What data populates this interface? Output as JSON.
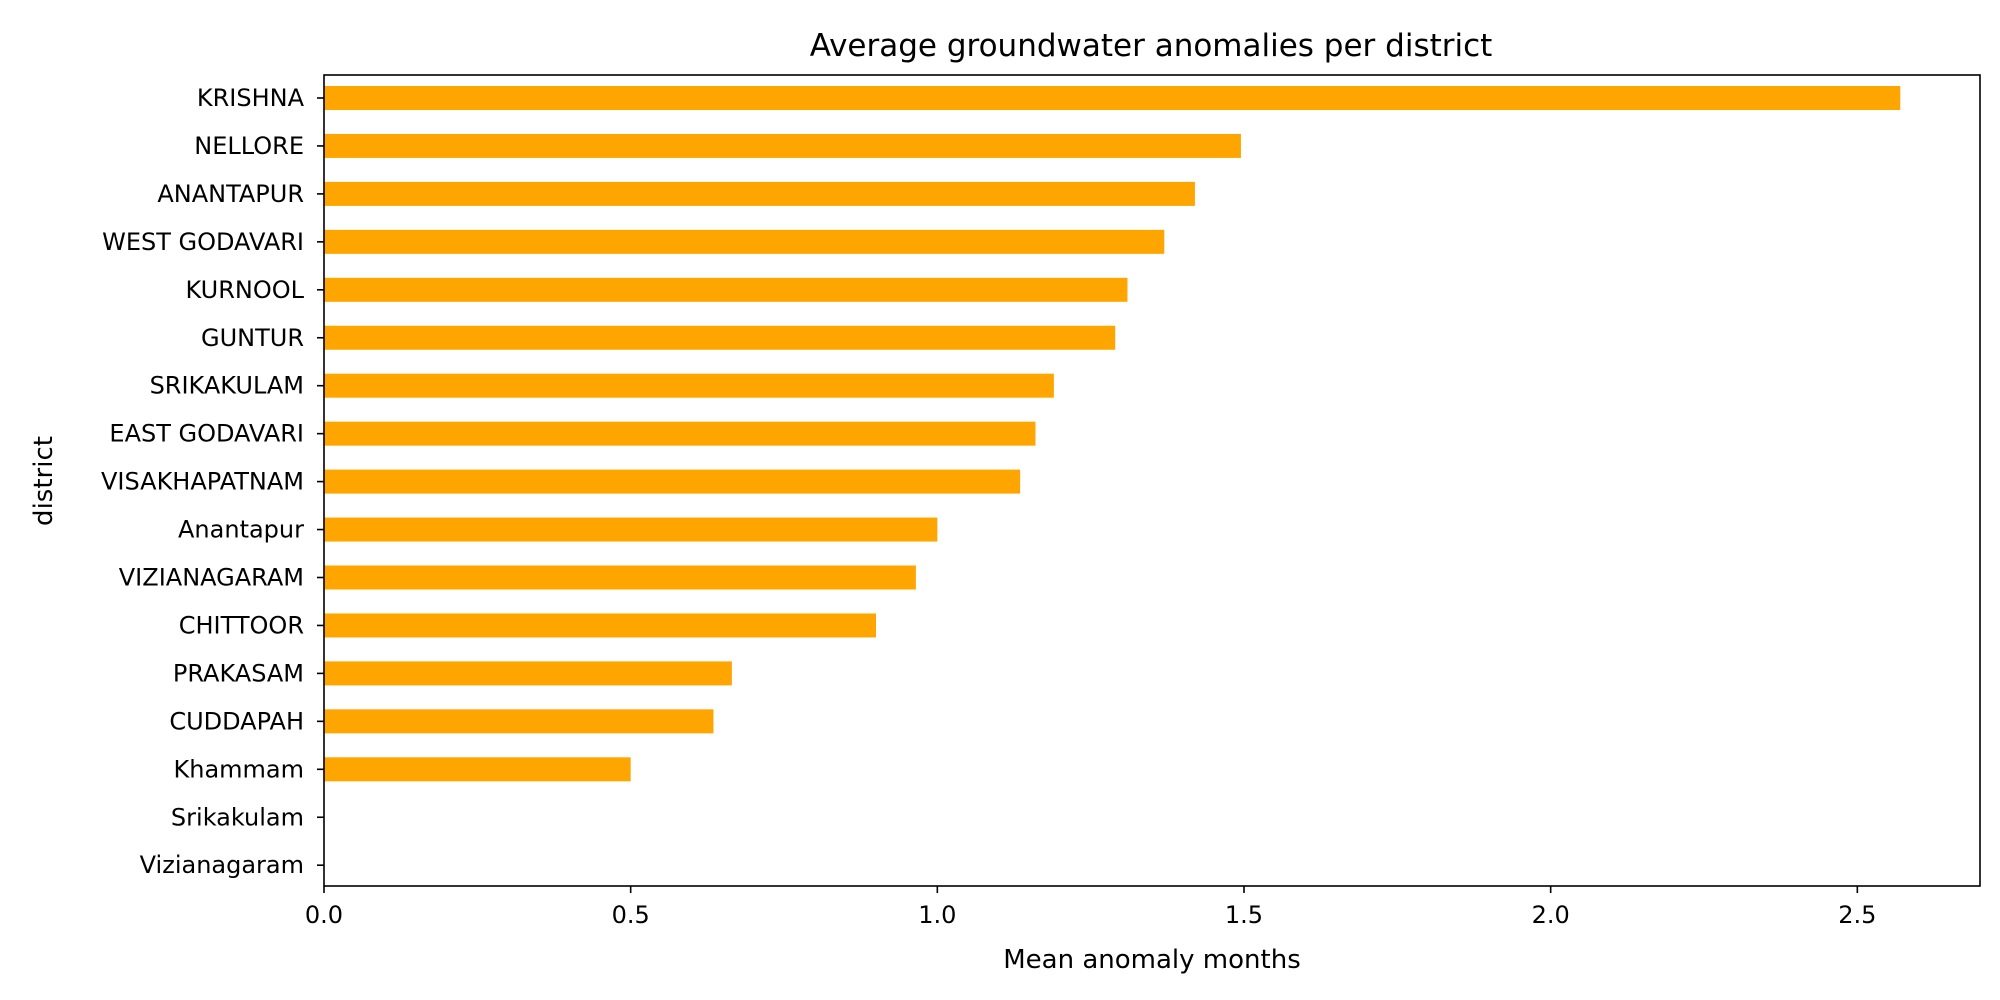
{
  "chart_data": {
    "type": "bar",
    "orientation": "horizontal",
    "title": "Average groundwater anomalies per district",
    "xlabel": "Mean anomaly months",
    "ylabel": "district",
    "xlim": [
      0,
      2.7
    ],
    "xticks": [
      0.0,
      0.5,
      1.0,
      1.5,
      2.0,
      2.5
    ],
    "xtick_labels": [
      "0.0",
      "0.5",
      "1.0",
      "1.5",
      "2.0",
      "2.5"
    ],
    "grid": false,
    "legend": "none",
    "bar_color": "#FFA500",
    "categories": [
      "KRISHNA",
      "NELLORE",
      "ANANTAPUR",
      "WEST GODAVARI",
      "KURNOOL",
      "GUNTUR",
      "SRIKAKULAM",
      "EAST GODAVARI",
      "VISAKHAPATNAM",
      "Anantapur",
      "VIZIANAGARAM",
      "CHITTOOR",
      "PRAKASAM",
      "CUDDAPAH",
      "Khammam",
      "Srikakulam",
      "Vizianagaram"
    ],
    "values": [
      2.57,
      1.495,
      1.42,
      1.37,
      1.31,
      1.29,
      1.19,
      1.16,
      1.135,
      1.0,
      0.965,
      0.9,
      0.665,
      0.635,
      0.5,
      0.0,
      0.0
    ]
  }
}
